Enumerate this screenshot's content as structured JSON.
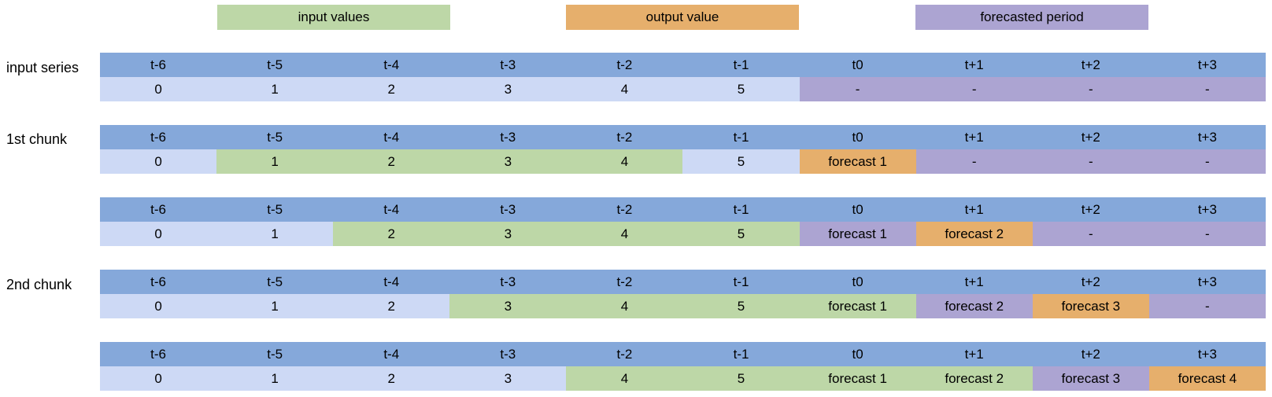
{
  "colors": {
    "header": "#85a8da",
    "base": "#cdd9f5",
    "input": "#bdd7a7",
    "output": "#e6af6c",
    "forecast": "#aca4d2"
  },
  "legend": {
    "input": "input values",
    "output": "output value",
    "forecast": "forecasted period"
  },
  "row_labels": {
    "input_series": "input series",
    "chunk1": "1st chunk",
    "chunk2": "2nd chunk"
  },
  "time_headers": [
    "t-6",
    "t-5",
    "t-4",
    "t-3",
    "t-2",
    "t-1",
    "t0",
    "t+1",
    "t+2",
    "t+3"
  ],
  "rows": [
    {
      "values": [
        "0",
        "1",
        "2",
        "3",
        "4",
        "5",
        "-",
        "-",
        "-",
        "-"
      ],
      "types": [
        "base",
        "base",
        "base",
        "base",
        "base",
        "base",
        "forecast",
        "forecast",
        "forecast",
        "forecast"
      ]
    },
    {
      "values": [
        "0",
        "1",
        "2",
        "3",
        "4",
        "5",
        "forecast 1",
        "-",
        "-",
        "-"
      ],
      "types": [
        "base",
        "input",
        "input",
        "input",
        "input",
        "base",
        "output",
        "forecast",
        "forecast",
        "forecast"
      ]
    },
    {
      "values": [
        "0",
        "1",
        "2",
        "3",
        "4",
        "5",
        "forecast 1",
        "forecast 2",
        "-",
        "-"
      ],
      "types": [
        "base",
        "base",
        "input",
        "input",
        "input",
        "input",
        "forecast",
        "output",
        "forecast",
        "forecast"
      ]
    },
    {
      "values": [
        "0",
        "1",
        "2",
        "3",
        "4",
        "5",
        "forecast 1",
        "forecast 2",
        "forecast 3",
        "-"
      ],
      "types": [
        "base",
        "base",
        "base",
        "input",
        "input",
        "input",
        "input",
        "forecast",
        "output",
        "forecast"
      ]
    },
    {
      "values": [
        "0",
        "1",
        "2",
        "3",
        "4",
        "5",
        "forecast 1",
        "forecast 2",
        "forecast 3",
        "forecast 4"
      ],
      "types": [
        "base",
        "base",
        "base",
        "base",
        "input",
        "input",
        "input",
        "input",
        "forecast",
        "output"
      ]
    }
  ]
}
